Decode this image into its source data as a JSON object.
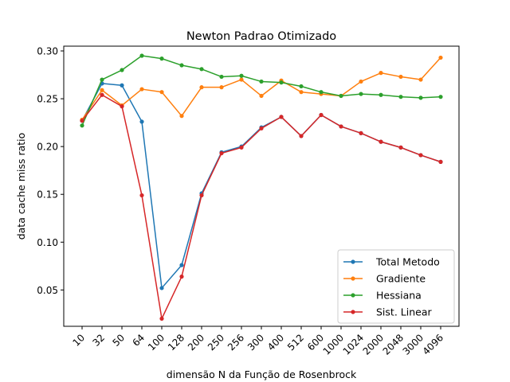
{
  "chart_data": {
    "type": "line",
    "title": "Newton Padrao Otimizado",
    "xlabel": "dimensão N da Função de Rosenbrock",
    "ylabel": "data cache miss ratio",
    "categories": [
      "10",
      "32",
      "50",
      "64",
      "100",
      "128",
      "200",
      "250",
      "256",
      "300",
      "400",
      "512",
      "600",
      "1000",
      "1024",
      "2000",
      "2048",
      "3000",
      "4096"
    ],
    "yticks": [
      "0.05",
      "0.10",
      "0.15",
      "0.20",
      "0.25",
      "0.30"
    ],
    "ylim": [
      0.012,
      0.305
    ],
    "grid": false,
    "legend_position": "lower right",
    "series": [
      {
        "name": "Total Metodo",
        "color": "#1f77b4",
        "values": [
          0.227,
          0.266,
          0.264,
          0.226,
          0.052,
          0.076,
          0.151,
          0.194,
          0.2,
          0.22,
          0.231,
          0.211,
          0.233,
          0.221,
          0.214,
          0.205,
          0.199,
          0.191,
          0.184
        ]
      },
      {
        "name": "Gradiente",
        "color": "#ff7f0e",
        "values": [
          0.228,
          0.259,
          0.243,
          0.26,
          0.257,
          0.232,
          0.262,
          0.262,
          0.27,
          0.253,
          0.269,
          0.257,
          0.255,
          0.253,
          0.268,
          0.277,
          0.273,
          0.27,
          0.293
        ]
      },
      {
        "name": "Hessiana",
        "color": "#2ca02c",
        "values": [
          0.222,
          0.27,
          0.28,
          0.295,
          0.292,
          0.285,
          0.281,
          0.273,
          0.274,
          0.268,
          0.267,
          0.263,
          0.257,
          0.253,
          0.255,
          0.254,
          0.252,
          0.251,
          0.252
        ]
      },
      {
        "name": "Sist. Linear",
        "color": "#d62728",
        "values": [
          0.227,
          0.254,
          0.242,
          0.149,
          0.02,
          0.064,
          0.149,
          0.193,
          0.199,
          0.219,
          0.231,
          0.211,
          0.233,
          0.221,
          0.214,
          0.205,
          0.199,
          0.191,
          0.184
        ]
      }
    ]
  }
}
